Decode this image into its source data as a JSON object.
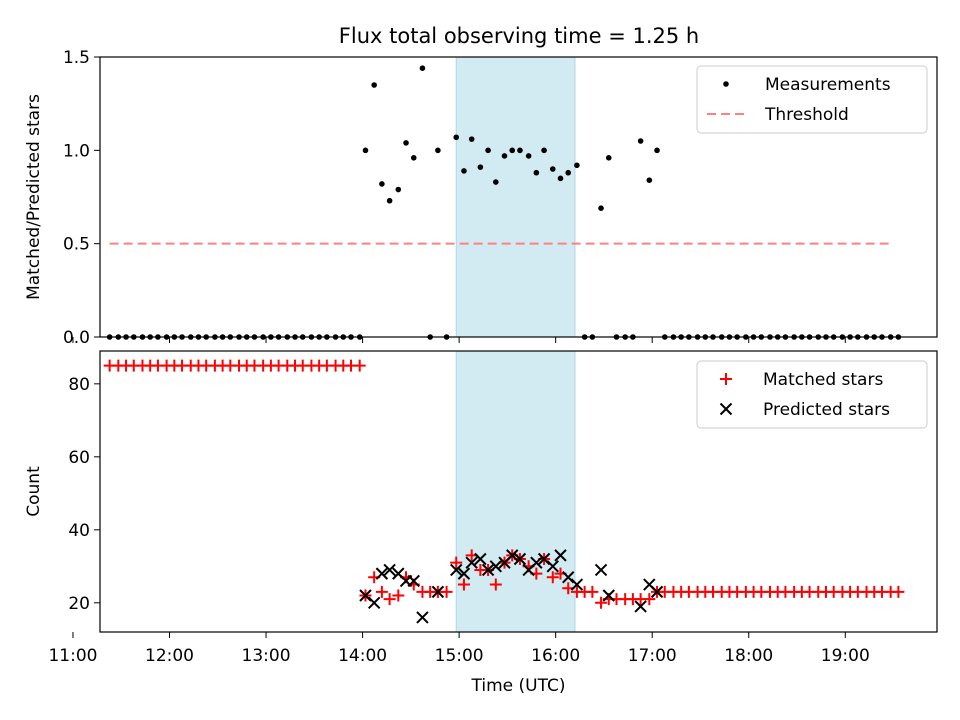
{
  "title": "Flux total observing time = 1.25 h",
  "colors": {
    "measurement": "#000000",
    "threshold": "#ff8080",
    "matched": "#ff0000",
    "predicted": "#000000",
    "highlight": "#add8e6"
  },
  "chart_data": [
    {
      "type": "scatter",
      "ylabel": "Matched/Predicted stars",
      "xlabel": "",
      "xlim": [
        11.28,
        19.95
      ],
      "ylim": [
        0,
        1.5
      ],
      "yticks": [
        "0.0",
        "0.5",
        "1.0",
        "1.5"
      ],
      "highlight_span": [
        14.97,
        16.2
      ],
      "legend": {
        "position": "top-right",
        "entries": [
          "Measurements",
          "Threshold"
        ]
      },
      "threshold": {
        "name": "Threshold",
        "y": 0.5,
        "x": [
          11.38,
          19.5
        ]
      },
      "series": [
        {
          "name": "Measurements",
          "points": [
            [
              11.38,
              0
            ],
            [
              11.47,
              0
            ],
            [
              11.55,
              0
            ],
            [
              11.63,
              0
            ],
            [
              11.72,
              0
            ],
            [
              11.8,
              0
            ],
            [
              11.88,
              0
            ],
            [
              11.97,
              0
            ],
            [
              12.05,
              0
            ],
            [
              12.13,
              0
            ],
            [
              12.22,
              0
            ],
            [
              12.3,
              0
            ],
            [
              12.38,
              0
            ],
            [
              12.47,
              0
            ],
            [
              12.55,
              0
            ],
            [
              12.63,
              0
            ],
            [
              12.72,
              0
            ],
            [
              12.8,
              0
            ],
            [
              12.88,
              0
            ],
            [
              12.97,
              0
            ],
            [
              13.05,
              0
            ],
            [
              13.13,
              0
            ],
            [
              13.22,
              0
            ],
            [
              13.3,
              0
            ],
            [
              13.38,
              0
            ],
            [
              13.47,
              0
            ],
            [
              13.55,
              0
            ],
            [
              13.63,
              0
            ],
            [
              13.72,
              0
            ],
            [
              13.8,
              0
            ],
            [
              13.88,
              0
            ],
            [
              13.97,
              0
            ],
            [
              14.03,
              1.0
            ],
            [
              14.12,
              1.35
            ],
            [
              14.2,
              0.82
            ],
            [
              14.28,
              0.73
            ],
            [
              14.37,
              0.79
            ],
            [
              14.45,
              1.04
            ],
            [
              14.53,
              0.96
            ],
            [
              14.62,
              1.44
            ],
            [
              14.7,
              0
            ],
            [
              14.78,
              1.0
            ],
            [
              14.87,
              0
            ],
            [
              14.97,
              1.07
            ],
            [
              15.05,
              0.89
            ],
            [
              15.13,
              1.06
            ],
            [
              15.22,
              0.91
            ],
            [
              15.3,
              1.0
            ],
            [
              15.38,
              0.83
            ],
            [
              15.47,
              0.97
            ],
            [
              15.55,
              1.0
            ],
            [
              15.63,
              1.0
            ],
            [
              15.72,
              0.97
            ],
            [
              15.8,
              0.88
            ],
            [
              15.88,
              1.0
            ],
            [
              15.97,
              0.9
            ],
            [
              16.05,
              0.85
            ],
            [
              16.13,
              0.88
            ],
            [
              16.22,
              0.92
            ],
            [
              16.3,
              0
            ],
            [
              16.38,
              0
            ],
            [
              16.47,
              0.69
            ],
            [
              16.55,
              0.96
            ],
            [
              16.63,
              0
            ],
            [
              16.72,
              0
            ],
            [
              16.8,
              0
            ],
            [
              16.88,
              1.05
            ],
            [
              16.97,
              0.84
            ],
            [
              17.05,
              1.0
            ],
            [
              17.13,
              0
            ],
            [
              17.22,
              0
            ],
            [
              17.3,
              0
            ],
            [
              17.38,
              0
            ],
            [
              17.47,
              0
            ],
            [
              17.55,
              0
            ],
            [
              17.63,
              0
            ],
            [
              17.72,
              0
            ],
            [
              17.8,
              0
            ],
            [
              17.88,
              0
            ],
            [
              17.97,
              0
            ],
            [
              18.05,
              0
            ],
            [
              18.13,
              0
            ],
            [
              18.22,
              0
            ],
            [
              18.3,
              0
            ],
            [
              18.38,
              0
            ],
            [
              18.47,
              0
            ],
            [
              18.55,
              0
            ],
            [
              18.63,
              0
            ],
            [
              18.72,
              0
            ],
            [
              18.8,
              0
            ],
            [
              18.88,
              0
            ],
            [
              18.97,
              0
            ],
            [
              19.05,
              0
            ],
            [
              19.13,
              0
            ],
            [
              19.22,
              0
            ],
            [
              19.3,
              0
            ],
            [
              19.38,
              0
            ],
            [
              19.47,
              0
            ],
            [
              19.55,
              0
            ]
          ]
        }
      ]
    },
    {
      "type": "scatter",
      "ylabel": "Count",
      "xlabel": "Time (UTC)",
      "xlim": [
        11.28,
        19.95
      ],
      "ylim": [
        12,
        89
      ],
      "yticks": [
        "20",
        "40",
        "60",
        "80"
      ],
      "xticks": [
        "11:00",
        "12:00",
        "13:00",
        "14:00",
        "15:00",
        "16:00",
        "17:00",
        "18:00",
        "19:00"
      ],
      "highlight_span": [
        14.97,
        16.2
      ],
      "legend": {
        "position": "top-right",
        "entries": [
          "Matched stars",
          "Predicted stars"
        ]
      },
      "series": [
        {
          "name": "Matched stars",
          "points": [
            [
              11.38,
              85
            ],
            [
              11.47,
              85
            ],
            [
              11.55,
              85
            ],
            [
              11.63,
              85
            ],
            [
              11.72,
              85
            ],
            [
              11.8,
              85
            ],
            [
              11.88,
              85
            ],
            [
              11.97,
              85
            ],
            [
              12.05,
              85
            ],
            [
              12.13,
              85
            ],
            [
              12.22,
              85
            ],
            [
              12.3,
              85
            ],
            [
              12.38,
              85
            ],
            [
              12.47,
              85
            ],
            [
              12.55,
              85
            ],
            [
              12.63,
              85
            ],
            [
              12.72,
              85
            ],
            [
              12.8,
              85
            ],
            [
              12.88,
              85
            ],
            [
              12.97,
              85
            ],
            [
              13.05,
              85
            ],
            [
              13.13,
              85
            ],
            [
              13.22,
              85
            ],
            [
              13.3,
              85
            ],
            [
              13.38,
              85
            ],
            [
              13.47,
              85
            ],
            [
              13.55,
              85
            ],
            [
              13.63,
              85
            ],
            [
              13.72,
              85
            ],
            [
              13.8,
              85
            ],
            [
              13.88,
              85
            ],
            [
              13.97,
              85
            ],
            [
              14.03,
              22
            ],
            [
              14.12,
              27
            ],
            [
              14.2,
              23
            ],
            [
              14.28,
              21
            ],
            [
              14.37,
              22
            ],
            [
              14.45,
              27
            ],
            [
              14.53,
              25
            ],
            [
              14.62,
              23
            ],
            [
              14.7,
              23
            ],
            [
              14.78,
              23
            ],
            [
              14.87,
              23
            ],
            [
              14.97,
              31
            ],
            [
              15.05,
              25
            ],
            [
              15.13,
              33
            ],
            [
              15.22,
              29
            ],
            [
              15.3,
              29
            ],
            [
              15.38,
              25
            ],
            [
              15.47,
              31
            ],
            [
              15.55,
              33
            ],
            [
              15.63,
              32
            ],
            [
              15.72,
              30
            ],
            [
              15.8,
              28
            ],
            [
              15.88,
              32
            ],
            [
              15.97,
              27
            ],
            [
              16.05,
              28
            ],
            [
              16.13,
              24
            ],
            [
              16.22,
              23
            ],
            [
              16.3,
              23
            ],
            [
              16.38,
              23
            ],
            [
              16.47,
              20
            ],
            [
              16.55,
              21
            ],
            [
              16.63,
              21
            ],
            [
              16.72,
              21
            ],
            [
              16.8,
              21
            ],
            [
              16.88,
              21
            ],
            [
              16.97,
              21
            ],
            [
              17.05,
              23
            ],
            [
              17.13,
              23
            ],
            [
              17.22,
              23
            ],
            [
              17.3,
              23
            ],
            [
              17.38,
              23
            ],
            [
              17.47,
              23
            ],
            [
              17.55,
              23
            ],
            [
              17.63,
              23
            ],
            [
              17.72,
              23
            ],
            [
              17.8,
              23
            ],
            [
              17.88,
              23
            ],
            [
              17.97,
              23
            ],
            [
              18.05,
              23
            ],
            [
              18.13,
              23
            ],
            [
              18.22,
              23
            ],
            [
              18.3,
              23
            ],
            [
              18.38,
              23
            ],
            [
              18.47,
              23
            ],
            [
              18.55,
              23
            ],
            [
              18.63,
              23
            ],
            [
              18.72,
              23
            ],
            [
              18.8,
              23
            ],
            [
              18.88,
              23
            ],
            [
              18.97,
              23
            ],
            [
              19.05,
              23
            ],
            [
              19.13,
              23
            ],
            [
              19.22,
              23
            ],
            [
              19.3,
              23
            ],
            [
              19.38,
              23
            ],
            [
              19.47,
              23
            ],
            [
              19.55,
              23
            ]
          ]
        },
        {
          "name": "Predicted stars",
          "points": [
            [
              14.03,
              22
            ],
            [
              14.12,
              20
            ],
            [
              14.2,
              28
            ],
            [
              14.28,
              29
            ],
            [
              14.37,
              28
            ],
            [
              14.45,
              26
            ],
            [
              14.53,
              26
            ],
            [
              14.62,
              16
            ],
            [
              14.78,
              23
            ],
            [
              14.97,
              29
            ],
            [
              15.05,
              28
            ],
            [
              15.13,
              31
            ],
            [
              15.22,
              32
            ],
            [
              15.3,
              29
            ],
            [
              15.38,
              30
            ],
            [
              15.47,
              31
            ],
            [
              15.55,
              33
            ],
            [
              15.63,
              32
            ],
            [
              15.72,
              29
            ],
            [
              15.8,
              31
            ],
            [
              15.88,
              32
            ],
            [
              15.97,
              30
            ],
            [
              16.05,
              33
            ],
            [
              16.13,
              27
            ],
            [
              16.22,
              25
            ],
            [
              16.47,
              29
            ],
            [
              16.55,
              22
            ],
            [
              16.88,
              19
            ],
            [
              16.97,
              25
            ],
            [
              17.05,
              23
            ]
          ]
        }
      ]
    }
  ]
}
